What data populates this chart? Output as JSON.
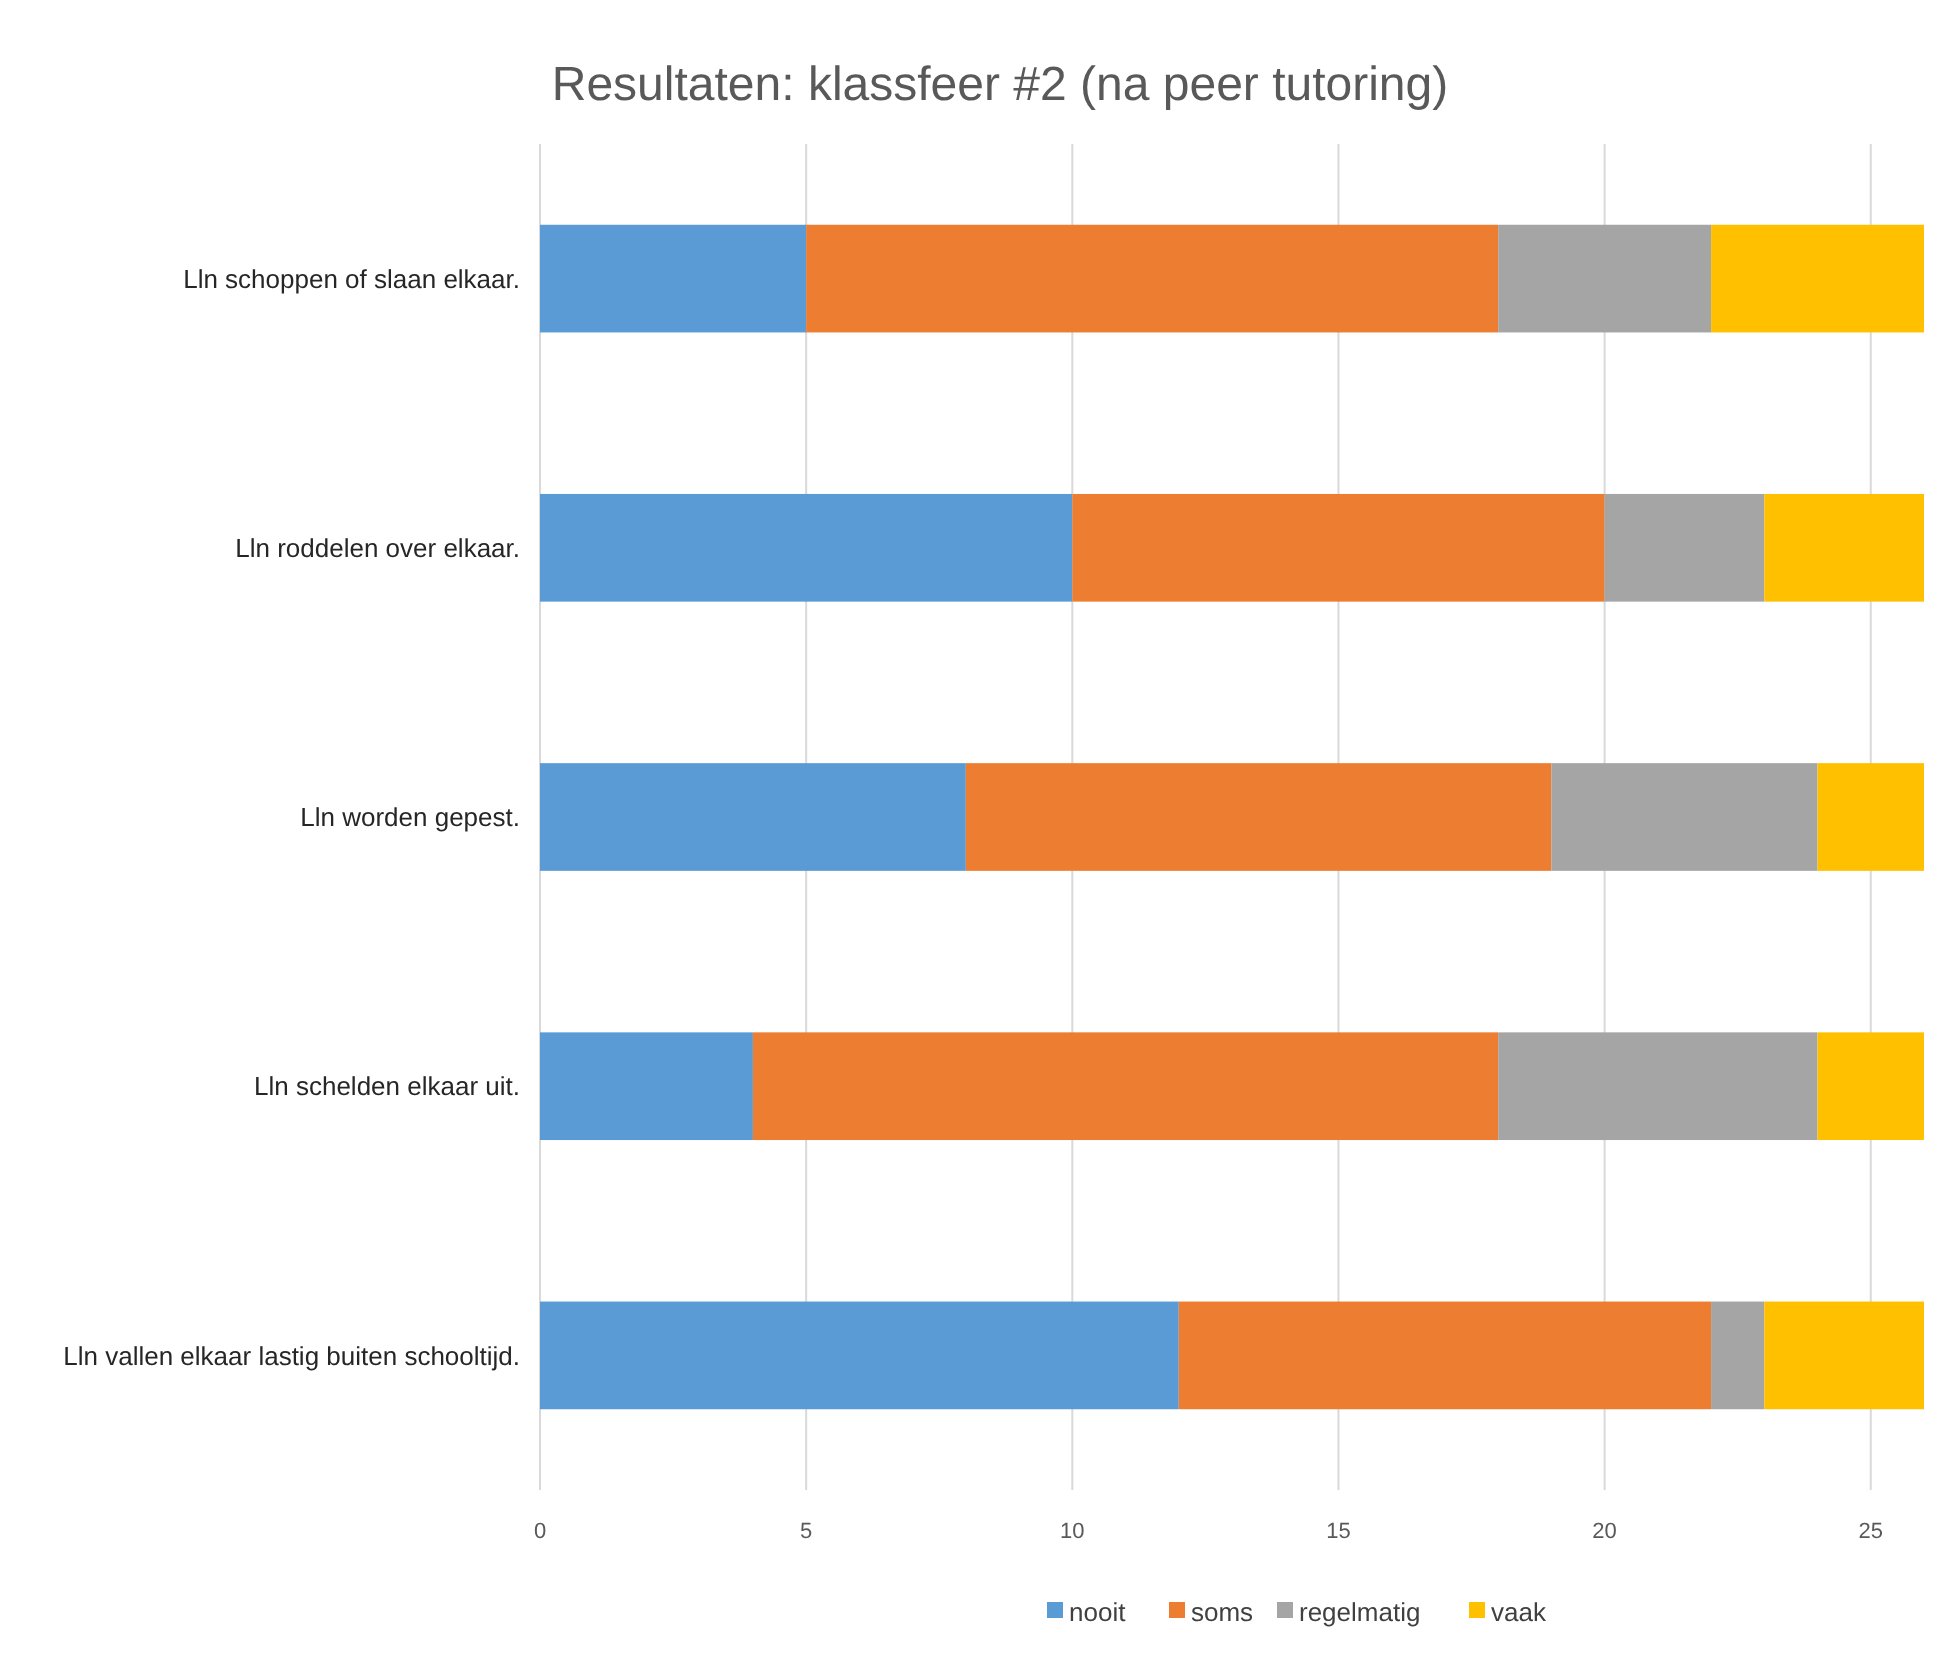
{
  "chart_data": {
    "type": "bar",
    "orientation": "horizontal",
    "stacked": true,
    "title": "Resultaten: klassfeer #2 (na peer tutoring)",
    "categories": [
      "Lln schoppen of slaan elkaar.",
      "Lln roddelen over elkaar.",
      "Lln worden gepest.",
      "Lln schelden elkaar uit.",
      "Lln vallen elkaar lastig buiten schooltijd."
    ],
    "series": [
      {
        "name": "nooit",
        "color": "#5b9bd5",
        "values": [
          5,
          10,
          8,
          4,
          12
        ]
      },
      {
        "name": "soms",
        "color": "#ed7d31",
        "values": [
          13,
          10,
          11,
          14,
          10
        ]
      },
      {
        "name": "regelmatig",
        "color": "#a5a5a5",
        "values": [
          4,
          3,
          5,
          6,
          1
        ]
      },
      {
        "name": "vaak",
        "color": "#ffc000",
        "values": [
          4,
          3,
          2,
          2,
          3
        ]
      }
    ],
    "xlim": [
      0,
      26
    ],
    "xticks": [
      0,
      5,
      10,
      15,
      20,
      25
    ],
    "grid": "x",
    "legend": "bottom"
  }
}
